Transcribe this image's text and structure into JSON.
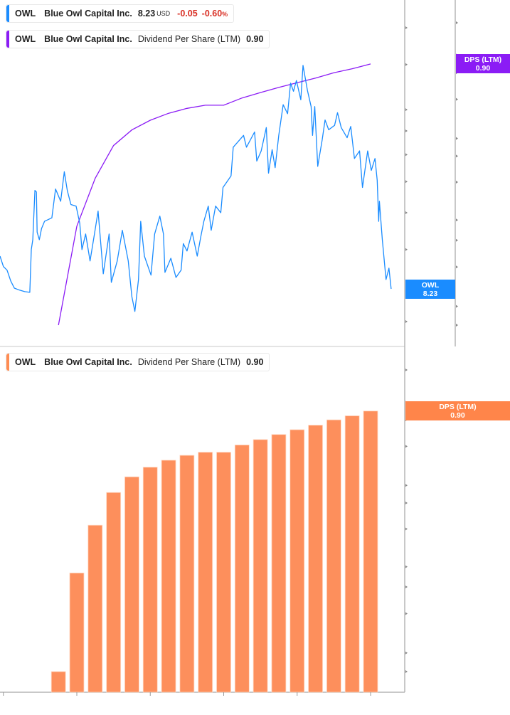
{
  "legends": {
    "price": {
      "symbol": "OWL",
      "name": "Blue Owl Capital Inc.",
      "value": "8.23",
      "unit": "USD",
      "change": "-0.05",
      "change_pct": "-0.60",
      "pct_sign": "%",
      "color": "#1a8cff"
    },
    "dps_top": {
      "symbol": "OWL",
      "name": "Blue Owl Capital Inc.",
      "metric": "Dividend Per Share (LTM)",
      "value": "0.90",
      "color": "#8b1cf5"
    },
    "dps_bottom": {
      "symbol": "OWL",
      "name": "Blue Owl Capital Inc.",
      "metric": "Dividend Per Share (LTM)",
      "value": "0.90",
      "color": "#ff8c52"
    }
  },
  "badges": {
    "price": {
      "label": "OWL",
      "value": "8.23",
      "color": "#1a8cff"
    },
    "dps_top": {
      "label": "DPS (LTM)",
      "value": "0.90",
      "color": "#8b1cf5"
    },
    "dps_bottom": {
      "label": "DPS (LTM)",
      "value": "0.90",
      "color": "#ff854a"
    }
  },
  "chart_data": [
    {
      "type": "line",
      "scale": "log",
      "grid": false,
      "legend": "top-left",
      "price_axis": {
        "ticks": [
          "30.00",
          "25.00",
          "20.00",
          "18.00",
          "16.00",
          "14.00",
          "12.00",
          "10.00",
          "8.00",
          "7.00"
        ],
        "ylim": [
          6.6,
          33
        ]
      },
      "dps_axis": {
        "ticks": [
          "1.47",
          "1.00",
          "0.81",
          "0.59",
          "0.37",
          "0.30",
          "0.22",
          "0.14",
          "0.11",
          "0.08",
          "0.05",
          "0.04"
        ],
        "ylim": [
          0.036,
          1.6
        ]
      },
      "series": [
        {
          "name": "OWL Blue Owl Capital Inc.",
          "axis": "price",
          "color": "#1a8cff",
          "x": [
            2020.95,
            2021.0,
            2021.05,
            2021.1,
            2021.15,
            2021.22,
            2021.29,
            2021.36,
            2021.38,
            2021.4,
            2021.43,
            2021.45,
            2021.46,
            2021.49,
            2021.52,
            2021.56,
            2021.66,
            2021.71,
            2021.78,
            2021.83,
            2021.87,
            2021.92,
            2021.99,
            2022.04,
            2022.07,
            2022.12,
            2022.18,
            2022.24,
            2022.29,
            2022.36,
            2022.44,
            2022.47,
            2022.55,
            2022.62,
            2022.7,
            2022.75,
            2022.79,
            2022.84,
            2022.87,
            2022.92,
            2023.01,
            2023.06,
            2023.13,
            2023.18,
            2023.2,
            2023.28,
            2023.35,
            2023.42,
            2023.45,
            2023.5,
            2023.57,
            2023.64,
            2023.69,
            2023.73,
            2023.79,
            2023.83,
            2023.89,
            2023.96,
            2023.99,
            2024.1,
            2024.13,
            2024.27,
            2024.31,
            2024.42,
            2024.45,
            2024.51,
            2024.58,
            2024.61,
            2024.66,
            2024.7,
            2024.75,
            2024.81,
            2024.87,
            2024.91,
            2024.95,
            2024.99,
            2025.05,
            2025.08,
            2025.14,
            2025.19,
            2025.21,
            2025.24,
            2025.28,
            2025.34,
            2025.38,
            2025.43,
            2025.51,
            2025.55,
            2025.6,
            2025.68,
            2025.73,
            2025.78,
            2025.85,
            2025.89,
            2025.96,
            2026.01,
            2026.06,
            2026.09,
            2026.11,
            2026.12,
            2026.16,
            2026.21,
            2026.25,
            2026.28
          ],
          "y": [
            9.68,
            9.19,
            9.03,
            8.56,
            8.26,
            8.18,
            8.12,
            8.09,
            10.0,
            10.5,
            13.4,
            13.3,
            10.9,
            10.5,
            11.1,
            11.5,
            11.7,
            13.5,
            12.7,
            14.7,
            13.4,
            12.5,
            12.4,
            11.4,
            10.0,
            10.8,
            9.45,
            10.8,
            12.1,
            8.87,
            10.8,
            8.5,
            9.45,
            11.0,
            9.45,
            7.92,
            7.36,
            8.62,
            11.5,
            9.68,
            8.81,
            10.8,
            11.8,
            10.8,
            8.93,
            9.58,
            8.71,
            9.03,
            10.3,
            9.93,
            10.9,
            9.68,
            10.7,
            11.5,
            12.4,
            11.0,
            12.4,
            12.0,
            13.6,
            14.4,
            16.6,
            17.6,
            16.6,
            17.9,
            15.5,
            16.3,
            18.3,
            14.6,
            16.4,
            15.0,
            17.6,
            20.5,
            19.6,
            22.8,
            21.9,
            23.1,
            21.0,
            24.9,
            22.0,
            20.3,
            17.6,
            20.3,
            15.1,
            17.2,
            19.0,
            18.1,
            18.5,
            19.7,
            18.3,
            17.4,
            18.4,
            15.7,
            16.3,
            13.6,
            16.3,
            14.8,
            15.7,
            14.1,
            11.5,
            12.7,
            10.5,
            8.62,
            9.12,
            8.23
          ]
        },
        {
          "name": "Dividend Per Share (LTM)",
          "axis": "dps",
          "color": "#8b1cf5",
          "x": [
            2021.75,
            2022.0,
            2022.25,
            2022.5,
            2022.75,
            2023.0,
            2023.25,
            2023.5,
            2023.75,
            2024.0,
            2024.25,
            2024.5,
            2024.75,
            2025.0,
            2025.25,
            2025.5,
            2025.75,
            2026.0
          ],
          "y": [
            0.04,
            0.13,
            0.23,
            0.34,
            0.41,
            0.46,
            0.5,
            0.53,
            0.55,
            0.55,
            0.6,
            0.64,
            0.68,
            0.72,
            0.76,
            0.81,
            0.85,
            0.9
          ]
        }
      ]
    },
    {
      "type": "bar",
      "scale": "log",
      "grid": false,
      "legend": "top-left",
      "axis": {
        "ticks": [
          "1.47",
          "1.00",
          "0.81",
          "0.59",
          "0.37",
          "0.30",
          "0.22",
          "0.14",
          "0.11",
          "0.08",
          "0.05",
          "0.04"
        ],
        "ylim": [
          0.036,
          1.6
        ]
      },
      "x_ticks": [
        "2021",
        "2022",
        "2023",
        "2024",
        "2025",
        "2026"
      ],
      "series": [
        {
          "name": "Dividend Per Share (LTM)",
          "color": "#fd8f5c",
          "x": [
            2021.75,
            2022.0,
            2022.25,
            2022.5,
            2022.75,
            2023.0,
            2023.25,
            2023.5,
            2023.75,
            2024.0,
            2024.25,
            2024.5,
            2024.75,
            2025.0,
            2025.25,
            2025.5,
            2025.75,
            2026.0
          ],
          "values": [
            0.04,
            0.13,
            0.23,
            0.34,
            0.41,
            0.46,
            0.5,
            0.53,
            0.55,
            0.55,
            0.6,
            0.64,
            0.68,
            0.72,
            0.76,
            0.81,
            0.85,
            0.9
          ]
        }
      ]
    }
  ]
}
